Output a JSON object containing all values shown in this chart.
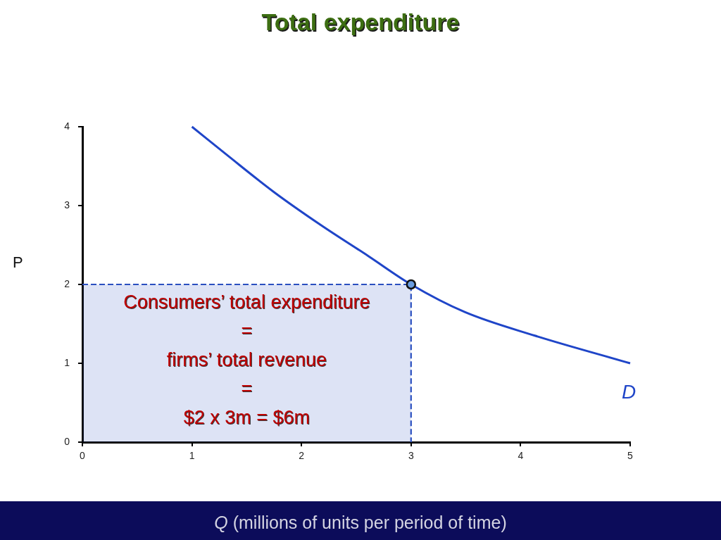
{
  "chart_data": {
    "type": "line",
    "title": "Total expenditure",
    "xlabel": "Q (millions of units per period of time)",
    "ylabel": "P",
    "xlim": [
      0,
      5
    ],
    "xticks": [
      0,
      1,
      2,
      3,
      4,
      5
    ],
    "ylim": [
      0,
      4
    ],
    "yticks": [
      0,
      1,
      2,
      3,
      4
    ],
    "grid": false,
    "legend": false,
    "series": [
      {
        "type": "area",
        "color": "#2a4fc0",
        "line_style": "dashed",
        "x": [
          0,
          3,
          3
        ],
        "values": [
          2,
          2,
          0
        ]
      },
      {
        "name": "D",
        "type": "line",
        "color": "#1f45c8",
        "x": [
          1,
          1.33,
          1.75,
          2.18,
          2.61,
          3,
          3.49,
          4.13,
          5
        ],
        "values": [
          4,
          3.63,
          3.17,
          2.75,
          2.36,
          2,
          1.65,
          1.35,
          1
        ]
      },
      {
        "type": "scatter",
        "color": "#6a9de0",
        "marker": "circle",
        "x": [
          3
        ],
        "values": [
          2
        ]
      }
    ],
    "annotations": [
      "Consumers’ total expenditure",
      "=",
      "firms’ total revenue",
      "=",
      "$2 x 3m = $6m"
    ]
  }
}
